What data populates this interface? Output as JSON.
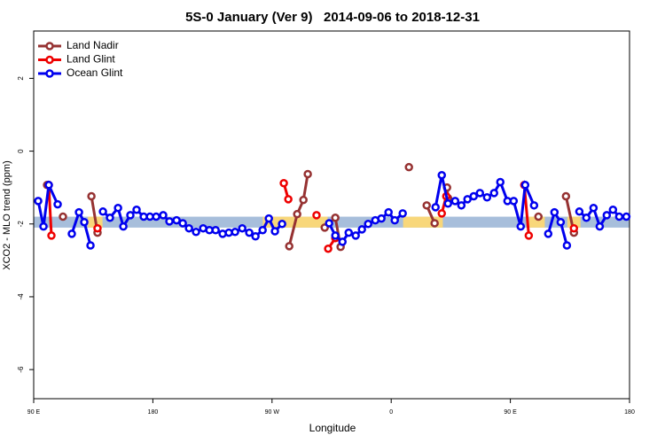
{
  "chart_data": {
    "type": "line",
    "title": "5S-0 January (Ver 9)   2014-09-06 to 2018-12-31",
    "x_label": "Longitude",
    "y_label": "XCO2 - MLO trend (ppm)",
    "xlim": [
      90,
      540
    ],
    "ylim": [
      -6.8,
      3.3
    ],
    "xticks": [
      {
        "value": 90,
        "label": "90 E"
      },
      180,
      {
        "value": 270,
        "label": "90 W"
      },
      {
        "value": 360,
        "label": "0"
      },
      {
        "value": 450,
        "label": "90 E"
      },
      {
        "value": 540,
        "label": "180"
      }
    ],
    "yticks": [
      -6,
      -4,
      -2,
      0,
      2
    ],
    "legend": "top-left",
    "band": {
      "ylim": [
        -2.1,
        -1.8
      ],
      "color": "#a7bedb",
      "highlight_color": "#f8d77a",
      "highlights": [
        [
          131,
          142
        ],
        [
          263,
          312
        ],
        [
          369,
          399
        ],
        [
          464,
          476
        ],
        [
          493,
          503
        ]
      ]
    },
    "series": [
      {
        "name": "Land Nadir",
        "color": "#963232",
        "x": [
          100.1,
          null,
          112.1,
          null,
          133.6,
          138.2,
          null,
          283.0,
          289.0,
          293.7,
          297.0,
          null,
          309.8,
          317.8,
          321.8,
          null,
          373.4,
          null,
          386.8,
          392.8,
          null,
          402.2,
          402.9,
          null,
          471.2,
          null,
          492.0,
          498.0
        ],
        "values": [
          -0.93,
          null,
          -1.8,
          null,
          -1.24,
          -2.24,
          null,
          -2.61,
          -1.73,
          -1.34,
          -0.63,
          null,
          -2.1,
          -1.83,
          -2.63,
          null,
          -0.44,
          null,
          -1.49,
          -1.98,
          null,
          -1.0,
          -1.29,
          null,
          -1.8,
          null,
          -1.24,
          -2.24
        ]
      },
      {
        "name": "Land Glint",
        "color": "#ee0000",
        "x": [
          101.4,
          103.4,
          null,
          138.2,
          null,
          278.9,
          282.3,
          null,
          303.6,
          null,
          312.4,
          317.8,
          null,
          398.2,
          401.6,
          null,
          460.5,
          463.9,
          null,
          498.0
        ],
        "values": [
          -0.93,
          -2.32,
          null,
          -2.12,
          null,
          -0.88,
          -1.32,
          null,
          -1.76,
          null,
          -2.68,
          -2.39,
          null,
          -1.71,
          -1.24,
          null,
          -0.93,
          -2.32,
          null,
          -2.12
        ]
      },
      {
        "name": "Ocean Glint",
        "color": "#0000ee",
        "x": [
          93.4,
          97.4,
          101.4,
          108.1,
          null,
          118.8,
          124.2,
          128.2,
          132.9,
          null,
          142.3,
          147.6,
          153.7,
          157.7,
          163.0,
          167.7,
          173.1,
          177.8,
          182.5,
          187.8,
          192.5,
          197.9,
          202.6,
          207.3,
          212.6,
          218.0,
          222.7,
          227.4,
          232.7,
          237.4,
          242.1,
          247.5,
          252.8,
          257.5,
          262.9,
          267.6,
          272.2,
          277.6,
          null,
          313.1,
          317.8,
          323.2,
          327.9,
          333.2,
          337.9,
          342.6,
          348.0,
          352.6,
          358.0,
          362.7,
          368.7,
          null,
          393.5,
          398.2,
          402.9,
          408.3,
          413.0,
          417.6,
          422.3,
          427.0,
          432.4,
          437.7,
          442.4,
          447.8,
          452.5,
          457.8,
          461.2,
          467.9,
          null,
          478.6,
          483.3,
          488.0,
          492.7,
          null,
          502.1,
          507.4,
          512.8,
          517.5,
          522.8,
          527.5,
          532.2,
          537.6
        ],
        "values": [
          -1.37,
          -2.07,
          -0.93,
          -1.46,
          null,
          -2.27,
          -1.68,
          -1.95,
          -2.59,
          null,
          -1.66,
          -1.83,
          -1.56,
          -2.07,
          -1.76,
          -1.61,
          -1.8,
          -1.8,
          -1.8,
          -1.76,
          -1.93,
          -1.9,
          -1.98,
          -2.12,
          -2.22,
          -2.12,
          -2.17,
          -2.17,
          -2.27,
          -2.24,
          -2.22,
          -2.12,
          -2.24,
          -2.34,
          -2.17,
          -1.85,
          -2.2,
          -2.0,
          null,
          -1.98,
          -2.32,
          -2.49,
          -2.24,
          -2.32,
          -2.15,
          -2.0,
          -1.9,
          -1.85,
          -1.68,
          -1.9,
          -1.71,
          null,
          -1.54,
          -0.66,
          -1.44,
          -1.37,
          -1.49,
          -1.32,
          -1.24,
          -1.15,
          -1.27,
          -1.15,
          -0.85,
          -1.37,
          -1.37,
          -2.07,
          -0.93,
          -1.49,
          null,
          -2.27,
          -1.68,
          -1.95,
          -2.59,
          null,
          -1.66,
          -1.83,
          -1.56,
          -2.07,
          -1.76,
          -1.61,
          -1.8,
          -1.8
        ]
      }
    ]
  }
}
